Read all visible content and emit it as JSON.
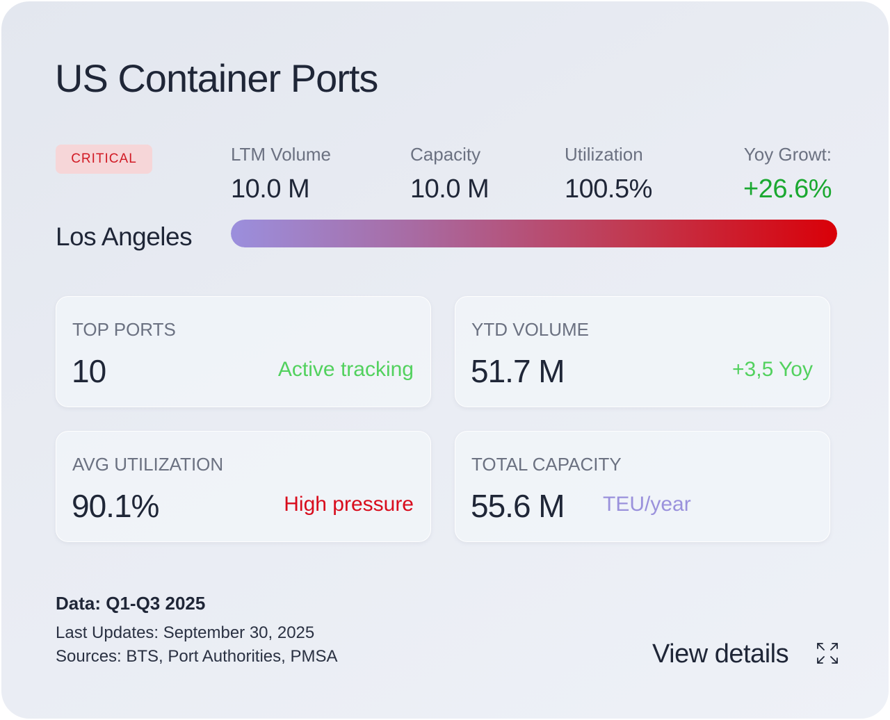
{
  "title": "US Container Ports",
  "badge": "CRITICAL",
  "port": "Los Angeles",
  "metrics": [
    {
      "label": "LTM Volume",
      "value": "10.0 M"
    },
    {
      "label": "Capacity",
      "value": "10.0 M"
    },
    {
      "label": "Utilization",
      "value": "100.5%"
    },
    {
      "label": "Yoy Growt:",
      "value": "+26.6%"
    }
  ],
  "utilization_bar": {
    "fill_fraction": 1.0
  },
  "stats": [
    {
      "label": "TOP PORTS",
      "value": "10",
      "note": "Active tracking"
    },
    {
      "label": "YTD VOLUME",
      "value": "51.7 M",
      "note": "+3,5 Yoy"
    },
    {
      "label": "AVG UTILIZATION",
      "value": "90.1%",
      "note": "High pressure"
    },
    {
      "label": "TOTAL CAPACITY",
      "value": "55.6 M",
      "note": "TEU/year"
    }
  ],
  "footer": {
    "data_range": "Data: Q1-Q3 2025",
    "last_updated": "Last Updates: September 30, 2025",
    "sources": "Sources: BTS, Port Authorities, PMSA"
  },
  "actions": {
    "view_details": "View details"
  },
  "icons": {
    "expand": "expand-icon"
  },
  "colors": {
    "critical": "#d11a24",
    "growth": "#1aa830",
    "positive": "#52d15e",
    "warning": "#d80c1c",
    "accent": "#9a91dc"
  }
}
